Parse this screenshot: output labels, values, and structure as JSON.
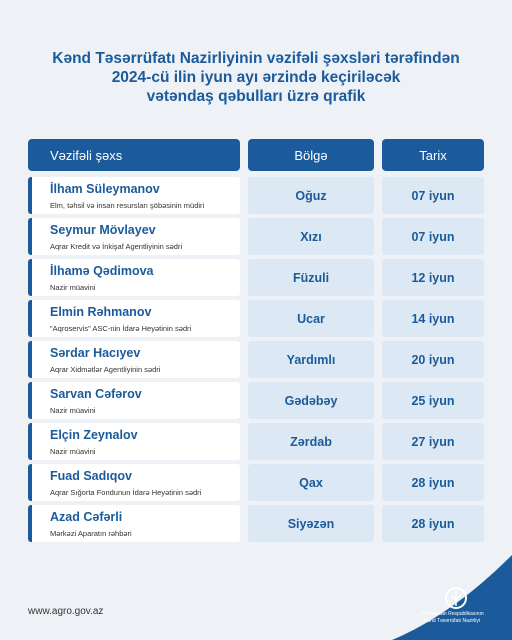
{
  "header": {
    "title_lines": [
      "Kənd Təsərrüfatı Nazirliyinin vəzifəli şəxsləri tərəfindən",
      "2024-cü ilin iyun ayı ərzində keçiriləcək",
      "vətəndaş qəbulları üzrə qrafik"
    ]
  },
  "table": {
    "columns": [
      "Vəzifəli şəxs",
      "Bölgə",
      "Tarix"
    ],
    "rows": [
      [
        "İlham Süleymanov",
        "Elm, təhsil və insan resursları şöbəsinin müdiri",
        "Oğuz",
        "07 iyun"
      ],
      [
        "Seymur Mövlayev",
        "Aqrar Kredit və İnkişaf Agentliyinin sədri",
        "Xızı",
        "07 iyun"
      ],
      [
        "İlhamə Qədimova",
        "Nazir müavini",
        "Füzuli",
        "12 iyun"
      ],
      [
        "Elmin Rəhmanov",
        "\"Aqroservis\" ASC-nin İdarə Heyətinin sədri",
        "Ucar",
        "14 iyun"
      ],
      [
        "Sərdar Hacıyev",
        "Aqrar Xidmətlər Agentliyinin sədri",
        "Yardımlı",
        "20 iyun"
      ],
      [
        "Sarvan Cəfərov",
        "Nazir müavini",
        "Gədəbəy",
        "25 iyun"
      ],
      [
        "Elçin Zeynalov",
        "Nazir müavini",
        "Zərdab",
        "27 iyun"
      ],
      [
        "Fuad Sadıqov",
        "Aqrar Sığorta Fondunun İdarə Heyətinin sədri",
        "Qax",
        "28 iyun"
      ],
      [
        "Azad Cəfərli",
        "Mərkəzi Aparatın rəhbəri",
        "Siyəzən",
        "28 iyun"
      ]
    ]
  },
  "footer": {
    "url": "www.agro.gov.az",
    "logo_text": [
      "Azərbaycan Respublikasının",
      "Kənd Təsərrüfatı Nazirliyi"
    ]
  }
}
